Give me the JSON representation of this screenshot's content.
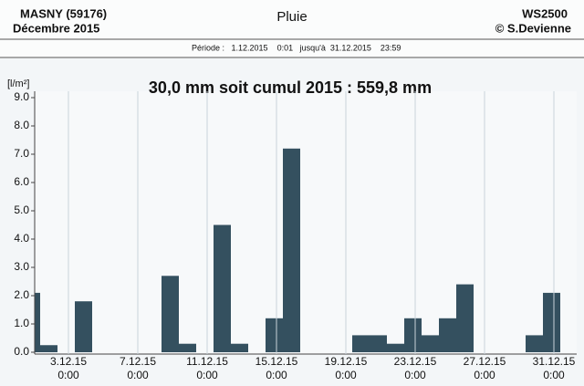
{
  "header": {
    "station": "MASNY (59176)",
    "month": "Décembre  2015",
    "title": "Pluie",
    "device": "WS2500",
    "author": "© S.Devienne",
    "period": "Période :   1.12.2015    0:01   jusqu'à  31.12.2015    23:59"
  },
  "chart_data": {
    "type": "bar",
    "title": "30,0 mm  soit cumul 2015 : 559,8 mm",
    "y_label": "[l/m²]",
    "categories": [
      null,
      null,
      "3.12.15",
      null,
      null,
      null,
      "7.12.15",
      null,
      null,
      null,
      "11.12.15",
      null,
      null,
      null,
      "15.12.15",
      null,
      null,
      null,
      "19.12.15",
      null,
      null,
      null,
      "23.12.15",
      null,
      null,
      null,
      "27.12.15",
      null,
      null,
      null,
      "31.12.15"
    ],
    "tick_time": "0:00",
    "values": [
      2.1,
      0.25,
      0,
      1.8,
      0,
      0,
      0,
      0,
      2.7,
      0.3,
      0,
      4.5,
      0.3,
      0,
      1.2,
      7.2,
      0,
      0,
      0,
      0.6,
      0.6,
      0.3,
      1.2,
      0.6,
      1.2,
      2.4,
      0,
      0,
      0,
      0.6,
      2.1
    ],
    "color": "#34505f",
    "ylim": [
      0,
      9.2
    ],
    "yticks": [
      {
        "value": 0,
        "label": "0.0"
      },
      {
        "value": 1,
        "label": "1.0"
      },
      {
        "value": 2,
        "label": "2.0"
      },
      {
        "value": 3,
        "label": "3.0"
      },
      {
        "value": 4,
        "label": "4.0"
      },
      {
        "value": 5,
        "label": "5.0"
      },
      {
        "value": 6,
        "label": "6.0"
      },
      {
        "value": 7,
        "label": "7.0"
      },
      {
        "value": 8,
        "label": "8.0"
      },
      {
        "value": 9,
        "label": "9.0"
      }
    ],
    "grid": true
  }
}
